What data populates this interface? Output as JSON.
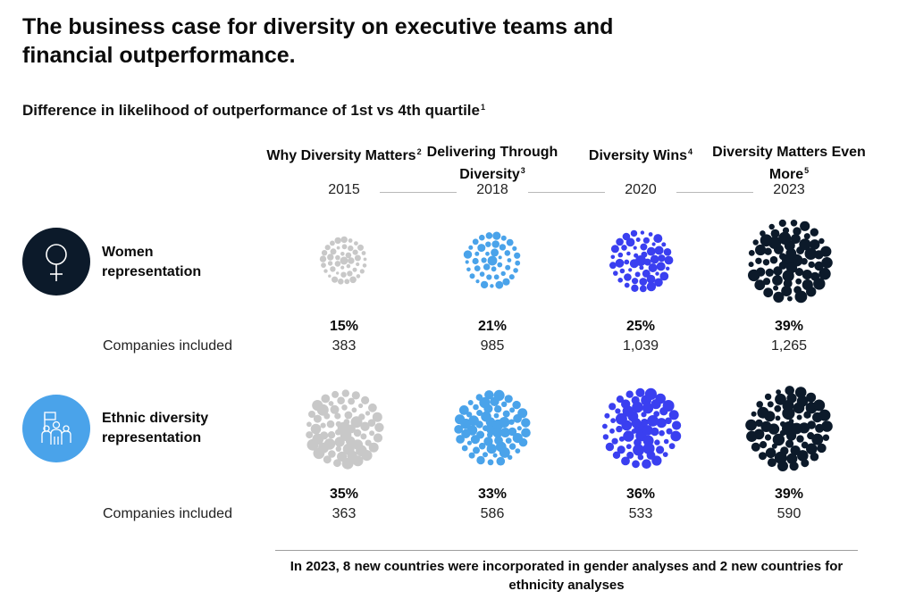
{
  "title": "The business case for diversity on executive teams and financial outperformance.",
  "subtitle": "Difference in likelihood of outperformance of 1st vs 4th quartile",
  "subtitle_sup": "1",
  "studies": [
    {
      "name": "Why Diversity Matters",
      "sup": "2",
      "year": "2015"
    },
    {
      "name": "Delivering Through Diversity",
      "sup": "3",
      "year": "2018"
    },
    {
      "name": "Diversity Wins",
      "sup": "4",
      "year": "2020"
    },
    {
      "name": "Diversity Matters Even More",
      "sup": "5",
      "year": "2023"
    }
  ],
  "companies_label": "Companies included",
  "footnote": "In 2023, 8 new countries were incorporated in gender analyses and 2 new countries for ethnicity analyses",
  "colors": {
    "2015": "#c8c8c8",
    "2018": "#4aa3ea",
    "2020": "#3a3ff0",
    "2023": "#0c1a2a",
    "women_icon_bg": "#0c1a2a",
    "ethnic_icon_bg": "#4aa3ea"
  },
  "icons": {
    "women": "female-symbol-icon",
    "ethnic": "group-people-flag-icon"
  },
  "chart_data": {
    "type": "table",
    "title": "Difference in likelihood of outperformance of 1st vs 4th quartile",
    "categories": [
      "2015",
      "2018",
      "2020",
      "2023"
    ],
    "series": [
      {
        "name": "Women representation",
        "values": [
          15,
          21,
          25,
          39
        ],
        "labels": [
          "15%",
          "21%",
          "25%",
          "39%"
        ],
        "companies": [
          "383",
          "985",
          "1,039",
          "1,265"
        ]
      },
      {
        "name": "Ethnic diversity representation",
        "values": [
          35,
          33,
          36,
          39
        ],
        "labels": [
          "35%",
          "33%",
          "36%",
          "39%"
        ],
        "companies": [
          "363",
          "586",
          "533",
          "590"
        ]
      }
    ]
  }
}
